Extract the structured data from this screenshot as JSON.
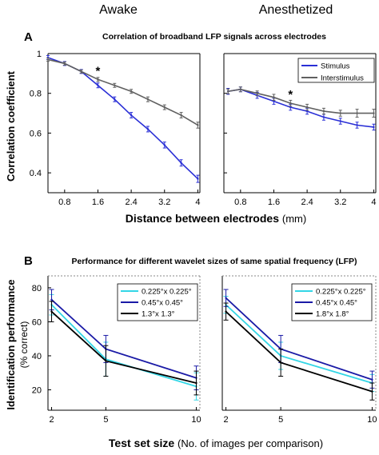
{
  "headers": {
    "left": "Awake",
    "right": "Anesthetized"
  },
  "panelA": {
    "letter": "A",
    "title": "Correlation of broadband LFP signals across electrodes",
    "ylabel": "Correlation coefficient",
    "xlabel": "Distance between electrodes",
    "xlabel_unit": "(mm)"
  },
  "panelB": {
    "letter": "B",
    "title": "Performance for different wavelet sizes of same spatial frequency (LFP)",
    "ylabel": "Identification performance",
    "ylabel_unit": "(% correct)",
    "xlabel": "Test set size",
    "xlabel_unit": "(No. of images per comparison)"
  },
  "chart_data": [
    {
      "type": "line",
      "panel": "A",
      "condition": "Awake",
      "xlim": [
        0.4,
        4.05
      ],
      "ylim": [
        0.3,
        1.0
      ],
      "xticks": [
        "0.8",
        "1.6",
        "2.4",
        "3.2",
        "4"
      ],
      "yticks": [
        "0.4",
        "0.6",
        "0.8",
        "1"
      ],
      "x": [
        0.4,
        0.8,
        1.2,
        1.6,
        2.0,
        2.4,
        2.8,
        3.2,
        3.6,
        4.0
      ],
      "legend": null,
      "significance": [
        {
          "x": 1.6,
          "label": "*"
        }
      ],
      "series": [
        {
          "name": "Stimulus",
          "color": "#2a2fd6",
          "values": [
            0.98,
            0.95,
            0.91,
            0.84,
            0.77,
            0.69,
            0.62,
            0.54,
            0.45,
            0.37
          ],
          "errors": [
            0.01,
            0.01,
            0.01,
            0.012,
            0.012,
            0.014,
            0.014,
            0.015,
            0.016,
            0.018
          ]
        },
        {
          "name": "Interstimulus",
          "color": "#606060",
          "values": [
            0.97,
            0.95,
            0.91,
            0.87,
            0.84,
            0.81,
            0.77,
            0.73,
            0.69,
            0.64
          ],
          "errors": [
            0.008,
            0.008,
            0.008,
            0.01,
            0.01,
            0.01,
            0.012,
            0.012,
            0.014,
            0.015
          ]
        }
      ]
    },
    {
      "type": "line",
      "panel": "A",
      "condition": "Anesthetized",
      "xlim": [
        0.4,
        4.05
      ],
      "ylim": [
        0.3,
        1.0
      ],
      "xticks": [
        "0.8",
        "1.6",
        "2.4",
        "3.2",
        "4"
      ],
      "yticks": [],
      "x": [
        0.5,
        0.8,
        1.2,
        1.6,
        2.0,
        2.4,
        2.8,
        3.2,
        3.6,
        4.0
      ],
      "legend": "top-right",
      "significance": [
        {
          "x": 2.0,
          "label": "*"
        }
      ],
      "series": [
        {
          "name": "Stimulus",
          "color": "#2a2fd6",
          "values": [
            0.81,
            0.82,
            0.79,
            0.76,
            0.73,
            0.71,
            0.68,
            0.66,
            0.64,
            0.63
          ],
          "errors": [
            0.015,
            0.012,
            0.015,
            0.015,
            0.015,
            0.015,
            0.015,
            0.015,
            0.015,
            0.015
          ]
        },
        {
          "name": "Interstimulus",
          "color": "#606060",
          "values": [
            0.81,
            0.82,
            0.8,
            0.78,
            0.75,
            0.73,
            0.71,
            0.7,
            0.7,
            0.7
          ],
          "errors": [
            0.012,
            0.012,
            0.012,
            0.015,
            0.015,
            0.015,
            0.015,
            0.015,
            0.02,
            0.02
          ]
        }
      ]
    },
    {
      "type": "line",
      "panel": "B",
      "condition": "Awake",
      "xlim": [
        1.8,
        10.2
      ],
      "ylim": [
        8,
        87
      ],
      "x": [
        2,
        5,
        10
      ],
      "xticks": [
        "2",
        "5",
        "10"
      ],
      "yticks": [
        "20",
        "40",
        "60",
        "80"
      ],
      "legend": "top-right",
      "series": [
        {
          "name": "0.225°x 0.225°",
          "color": "#33d6e6",
          "values": [
            70,
            38,
            22
          ],
          "errors": [
            6,
            10,
            8
          ]
        },
        {
          "name": "0.45°x 0.45°",
          "color": "#1a1aa6",
          "values": [
            73,
            44,
            27
          ],
          "errors": [
            6,
            8,
            7
          ]
        },
        {
          "name": "1.3°x 1.3°",
          "color": "#000000",
          "values": [
            66,
            37,
            24
          ],
          "errors": [
            6,
            9,
            7
          ]
        }
      ]
    },
    {
      "type": "line",
      "panel": "B",
      "condition": "Anesthetized",
      "xlim": [
        1.8,
        10.2
      ],
      "ylim": [
        8,
        87
      ],
      "x": [
        2,
        5,
        10
      ],
      "xticks": [
        "2",
        "5",
        "10"
      ],
      "yticks": [],
      "legend": "top-right",
      "series": [
        {
          "name": "0.225°x 0.225°",
          "color": "#33d6e6",
          "values": [
            70,
            40,
            24
          ],
          "errors": [
            5,
            8,
            5
          ]
        },
        {
          "name": "0.45°x 0.45°",
          "color": "#1a1aa6",
          "values": [
            74,
            44,
            26
          ],
          "errors": [
            5,
            8,
            5
          ]
        },
        {
          "name": "1.8°x 1.8°",
          "color": "#000000",
          "values": [
            66,
            36,
            19
          ],
          "errors": [
            5,
            8,
            5
          ]
        }
      ]
    }
  ]
}
